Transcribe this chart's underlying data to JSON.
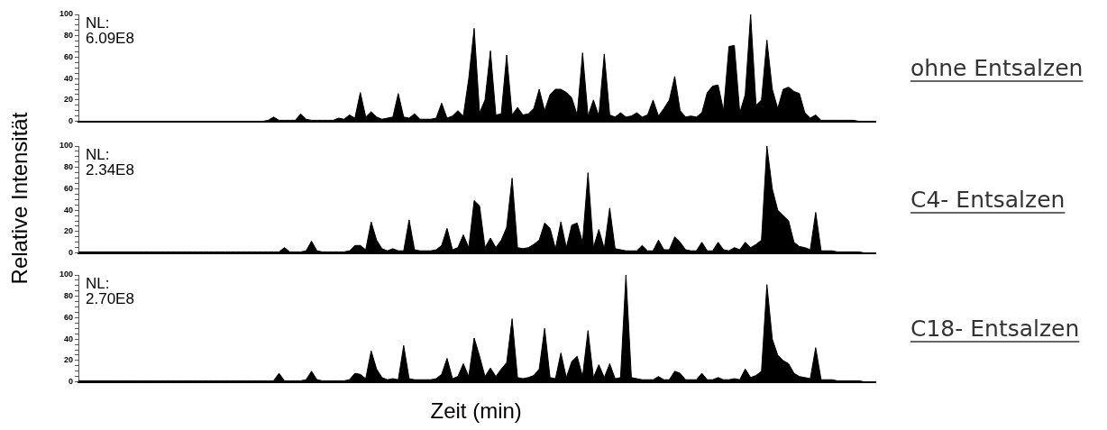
{
  "chart_data": [
    {
      "type": "area",
      "annotations": [
        "NL: 6.09E8",
        "ohne Entsalzen"
      ],
      "tick_labels": "y",
      "color": "#000000",
      "ylim": [
        0,
        100
      ],
      "yticks": [
        0,
        {
          "value": 5,
          "label": null
        },
        {
          "value": 10,
          "label": null
        },
        {
          "value": 15,
          "label": null
        },
        20,
        {
          "value": 25,
          "label": null
        },
        {
          "value": 30,
          "label": null
        },
        {
          "value": 35,
          "label": null
        },
        40,
        {
          "value": 45,
          "label": null
        },
        {
          "value": 50,
          "label": null
        },
        {
          "value": 55,
          "label": null
        },
        60,
        {
          "value": 65,
          "label": null
        },
        {
          "value": 70,
          "label": null
        },
        {
          "value": 75,
          "label": null
        },
        80,
        {
          "value": 85,
          "label": null
        },
        {
          "value": 90,
          "label": null
        },
        {
          "value": 95,
          "label": null
        },
        100
      ],
      "categories": [
        null,
        null,
        null,
        null,
        null,
        null,
        null,
        null,
        null,
        null,
        null,
        null,
        null,
        null,
        null,
        null,
        null,
        null,
        null,
        null,
        null,
        null,
        null,
        null,
        null,
        null,
        null,
        null,
        null,
        null,
        null,
        null,
        null,
        null,
        null,
        null,
        null,
        null,
        null,
        null,
        null,
        null,
        null,
        null,
        null,
        null,
        null,
        null,
        null,
        null,
        null,
        null,
        null,
        null,
        null,
        null,
        null,
        null,
        null,
        null,
        null,
        null,
        null,
        null,
        null,
        null,
        null,
        null,
        null,
        null,
        null,
        null,
        null,
        null,
        null,
        null,
        null,
        null,
        null,
        null,
        null,
        null,
        null,
        null,
        null,
        null,
        null,
        null,
        null,
        null,
        null,
        null,
        null,
        null,
        null,
        null,
        null,
        null,
        null,
        null,
        null,
        null,
        null,
        null,
        null,
        null,
        null,
        null,
        null,
        null,
        null,
        null,
        null,
        null,
        null,
        null,
        null,
        null,
        null,
        null,
        null,
        null,
        null,
        null,
        null,
        null,
        null,
        null,
        null,
        null,
        null,
        null,
        null,
        null,
        null,
        null,
        null,
        null,
        null,
        null,
        null,
        null,
        null,
        null,
        null,
        null,
        null,
        null
      ],
      "values": [
        0,
        0,
        0,
        0,
        0,
        0,
        0,
        0,
        0,
        0,
        0,
        0,
        0,
        0,
        0,
        0,
        0,
        0,
        0,
        0,
        0,
        0,
        0,
        0,
        0,
        0,
        0,
        0,
        0,
        0,
        0,
        0,
        0,
        0,
        0,
        1,
        4,
        1,
        1,
        1,
        1,
        7,
        2,
        1,
        1,
        1,
        1,
        1,
        3,
        2,
        6,
        3,
        27,
        4,
        9,
        4,
        2,
        3,
        4,
        26,
        4,
        3,
        7,
        2,
        2,
        2,
        3,
        17,
        3,
        5,
        10,
        5,
        40,
        87,
        8,
        20,
        66,
        6,
        7,
        62,
        6,
        13,
        6,
        7,
        12,
        30,
        10,
        25,
        30,
        30,
        27,
        22,
        6,
        64,
        5,
        20,
        5,
        63,
        6,
        4,
        8,
        4,
        5,
        8,
        4,
        6,
        20,
        5,
        12,
        20,
        42,
        10,
        4,
        5,
        4,
        8,
        27,
        33,
        34,
        10,
        70,
        71,
        8,
        25,
        100,
        15,
        20,
        76,
        30,
        12,
        30,
        32,
        28,
        26,
        8,
        3,
        6,
        1,
        1,
        1,
        1,
        1,
        1,
        1,
        0,
        0,
        0,
        0
      ]
    },
    {
      "type": "area",
      "ylabel": "Relative Intensität",
      "annotations": [
        "NL: 2.34E8",
        "C4- Entsalzen"
      ],
      "tick_labels": "y",
      "color": "#000000",
      "ylim": [
        0,
        100
      ],
      "yticks": [
        0,
        {
          "value": 5,
          "label": null
        },
        {
          "value": 10,
          "label": null
        },
        {
          "value": 15,
          "label": null
        },
        20,
        {
          "value": 25,
          "label": null
        },
        {
          "value": 30,
          "label": null
        },
        {
          "value": 35,
          "label": null
        },
        40,
        {
          "value": 45,
          "label": null
        },
        {
          "value": 50,
          "label": null
        },
        {
          "value": 55,
          "label": null
        },
        60,
        {
          "value": 65,
          "label": null
        },
        {
          "value": 70,
          "label": null
        },
        {
          "value": 75,
          "label": null
        },
        80,
        {
          "value": 85,
          "label": null
        },
        {
          "value": 90,
          "label": null
        },
        {
          "value": 95,
          "label": null
        },
        100
      ],
      "categories": [
        null,
        null,
        null,
        null,
        null,
        null,
        null,
        null,
        null,
        null,
        null,
        null,
        null,
        null,
        null,
        null,
        null,
        null,
        null,
        null,
        null,
        null,
        null,
        null,
        null,
        null,
        null,
        null,
        null,
        null,
        null,
        null,
        null,
        null,
        null,
        null,
        null,
        null,
        null,
        null,
        null,
        null,
        null,
        null,
        null,
        null,
        null,
        null,
        null,
        null,
        null,
        null,
        null,
        null,
        null,
        null,
        null,
        null,
        null,
        null,
        null,
        null,
        null,
        null,
        null,
        null,
        null,
        null,
        null,
        null,
        null,
        null,
        null,
        null,
        null,
        null,
        null,
        null,
        null,
        null,
        null,
        null,
        null,
        null,
        null,
        null,
        null,
        null,
        null,
        null,
        null,
        null,
        null,
        null,
        null,
        null,
        null,
        null,
        null,
        null,
        null,
        null,
        null,
        null,
        null,
        null,
        null,
        null,
        null,
        null,
        null,
        null,
        null,
        null,
        null,
        null,
        null,
        null,
        null,
        null,
        null,
        null,
        null,
        null,
        null,
        null,
        null,
        null,
        null,
        null,
        null,
        null,
        null,
        null,
        null,
        null,
        null,
        null,
        null,
        null,
        null,
        null,
        null,
        null,
        null,
        null,
        null,
        null
      ],
      "values": [
        1,
        1,
        1,
        1,
        1,
        1,
        1,
        1,
        1,
        1,
        1,
        1,
        1,
        1,
        1,
        1,
        1,
        1,
        1,
        1,
        1,
        1,
        1,
        1,
        1,
        1,
        1,
        1,
        1,
        1,
        1,
        1,
        1,
        1,
        1,
        1,
        1,
        1,
        5,
        1,
        1,
        1,
        2,
        11,
        2,
        1,
        1,
        1,
        1,
        1,
        2,
        7,
        7,
        3,
        29,
        12,
        4,
        2,
        4,
        2,
        2,
        31,
        3,
        2,
        2,
        2,
        3,
        7,
        23,
        3,
        5,
        17,
        5,
        49,
        44,
        5,
        14,
        5,
        12,
        24,
        70,
        5,
        4,
        5,
        8,
        12,
        28,
        23,
        4,
        29,
        5,
        26,
        28,
        10,
        75,
        5,
        22,
        4,
        42,
        4,
        3,
        2,
        2,
        2,
        7,
        2,
        2,
        12,
        3,
        3,
        15,
        10,
        3,
        2,
        2,
        10,
        2,
        2,
        10,
        3,
        2,
        5,
        3,
        10,
        5,
        8,
        12,
        100,
        60,
        40,
        35,
        30,
        10,
        6,
        5,
        3,
        38,
        2,
        2,
        2,
        1,
        1,
        1,
        1,
        1,
        0,
        0,
        0
      ]
    },
    {
      "type": "area",
      "xlabel": "Zeit (min)",
      "annotations": [
        "NL: 2.70E8",
        "C18- Entsalzen"
      ],
      "tick_labels": "y",
      "color": "#000000",
      "ylim": [
        0,
        100
      ],
      "yticks": [
        0,
        {
          "value": 5,
          "label": null
        },
        {
          "value": 10,
          "label": null
        },
        {
          "value": 15,
          "label": null
        },
        20,
        {
          "value": 25,
          "label": null
        },
        {
          "value": 30,
          "label": null
        },
        {
          "value": 35,
          "label": null
        },
        40,
        {
          "value": 45,
          "label": null
        },
        {
          "value": 50,
          "label": null
        },
        {
          "value": 55,
          "label": null
        },
        60,
        {
          "value": 65,
          "label": null
        },
        {
          "value": 70,
          "label": null
        },
        {
          "value": 75,
          "label": null
        },
        80,
        {
          "value": 85,
          "label": null
        },
        {
          "value": 90,
          "label": null
        },
        {
          "value": 95,
          "label": null
        },
        100
      ],
      "categories": [
        null,
        null,
        null,
        null,
        null,
        null,
        null,
        null,
        null,
        null,
        null,
        null,
        null,
        null,
        null,
        null,
        null,
        null,
        null,
        null,
        null,
        null,
        null,
        null,
        null,
        null,
        null,
        null,
        null,
        null,
        null,
        null,
        null,
        null,
        null,
        null,
        null,
        null,
        null,
        null,
        null,
        null,
        null,
        null,
        null,
        null,
        null,
        null,
        null,
        null,
        null,
        null,
        null,
        null,
        null,
        null,
        null,
        null,
        null,
        null,
        null,
        null,
        null,
        null,
        null,
        null,
        null,
        null,
        null,
        null,
        null,
        null,
        null,
        null,
        null,
        null,
        null,
        null,
        null,
        null,
        null,
        null,
        null,
        null,
        null,
        null,
        null,
        null,
        null,
        null,
        null,
        null,
        null,
        null,
        null,
        null,
        null,
        null,
        null,
        null,
        null,
        null,
        null,
        null,
        null,
        null,
        null,
        null,
        null,
        null,
        null,
        null,
        null,
        null,
        null,
        null,
        null,
        null,
        null,
        null,
        null,
        null,
        null,
        null,
        null,
        null,
        null,
        null,
        null,
        null,
        null,
        null,
        null,
        null,
        null,
        null,
        null,
        null,
        null,
        null,
        null,
        null,
        null,
        null,
        null,
        null,
        null,
        null
      ],
      "values": [
        1,
        1,
        1,
        1,
        1,
        1,
        1,
        1,
        1,
        1,
        1,
        1,
        1,
        1,
        1,
        1,
        1,
        1,
        1,
        1,
        1,
        1,
        1,
        1,
        1,
        1,
        1,
        1,
        1,
        1,
        1,
        1,
        1,
        1,
        1,
        1,
        1,
        8,
        1,
        1,
        1,
        1,
        2,
        10,
        2,
        1,
        1,
        1,
        1,
        1,
        2,
        8,
        7,
        3,
        29,
        12,
        4,
        2,
        3,
        2,
        34,
        3,
        2,
        2,
        2,
        2,
        3,
        7,
        22,
        3,
        5,
        17,
        5,
        41,
        24,
        5,
        13,
        5,
        12,
        18,
        59,
        4,
        3,
        4,
        6,
        12,
        50,
        4,
        3,
        27,
        4,
        19,
        24,
        5,
        48,
        4,
        16,
        4,
        17,
        3,
        4,
        100,
        4,
        3,
        2,
        2,
        2,
        5,
        2,
        2,
        10,
        8,
        2,
        2,
        2,
        8,
        2,
        2,
        4,
        2,
        2,
        3,
        2,
        12,
        4,
        6,
        10,
        91,
        40,
        25,
        20,
        17,
        8,
        5,
        4,
        3,
        32,
        2,
        2,
        2,
        1,
        1,
        1,
        1,
        1,
        0,
        0,
        0
      ]
    }
  ]
}
